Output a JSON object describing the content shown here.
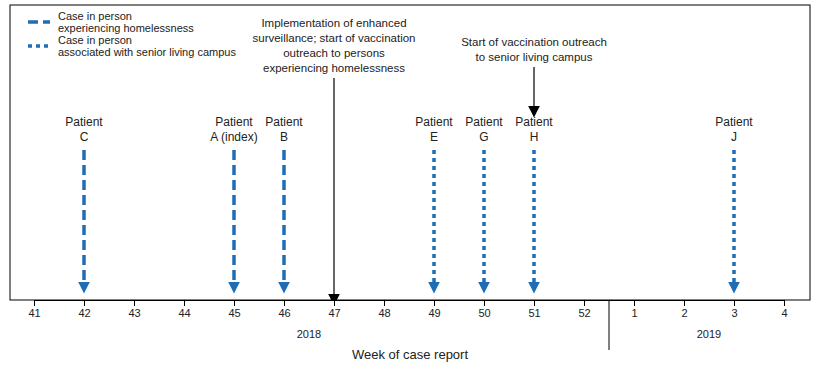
{
  "chart_data": {
    "type": "timeline",
    "x_label": "Week of case report",
    "categories": [
      41,
      42,
      43,
      44,
      45,
      46,
      47,
      48,
      49,
      50,
      51,
      52,
      1,
      2,
      3,
      4
    ],
    "year_groups": [
      {
        "label": "2018",
        "from": 41,
        "to": 52
      },
      {
        "label": "2019",
        "from": 1,
        "to": 4
      }
    ],
    "legend": "upper left",
    "series": [
      {
        "name": "Case in person\nexperiencing homelessness",
        "color": "#1f6db5",
        "line_style": "dashed",
        "marker": "arrow",
        "x": [
          42,
          45,
          46
        ],
        "labels": [
          "Patient\nC",
          "Patient\nA (index)",
          "Patient\nB"
        ]
      },
      {
        "name": "Case in person\nassociated with senior living campus",
        "color": "#1f6db5",
        "line_style": "dotted",
        "marker": "arrow",
        "x": [
          49,
          50,
          51,
          3
        ],
        "labels": [
          "Patient\nE",
          "Patient\nG",
          "Patient\nH",
          "Patient\nJ"
        ]
      }
    ],
    "annotations": [
      {
        "x": 47,
        "text": "Implementation of enhanced\nsurveillance; start of vaccination\noutreach to persons\nexperiencing homelessness"
      },
      {
        "x": 51,
        "text": "Start of vaccination outreach\nto senior living campus"
      }
    ]
  }
}
